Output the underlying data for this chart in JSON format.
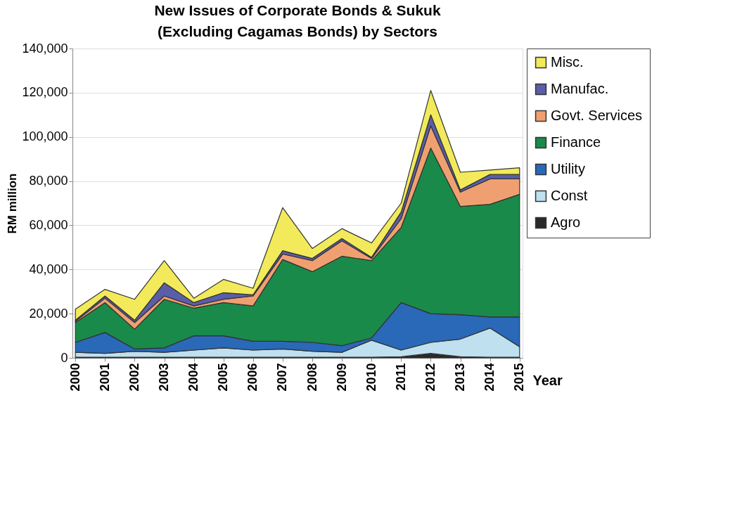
{
  "chart_data": {
    "type": "area",
    "title": "New Issues of Corporate Bonds & Sukuk (Excluding Cagamas Bonds) by Sectors",
    "xlabel": "Year",
    "ylabel": "RM million",
    "stacked": true,
    "legend": "right",
    "grid": "y",
    "categories": [
      "2000",
      "2001",
      "2002",
      "2003",
      "2004",
      "2005",
      "2006",
      "2007",
      "2008",
      "2009",
      "2010",
      "2011",
      "2012",
      "2013",
      "2014",
      "2015"
    ],
    "ylim": [
      0,
      140000
    ],
    "yticks": [
      {
        "value": 0,
        "label": "0"
      },
      {
        "value": 20000,
        "label": "20,000"
      },
      {
        "value": 40000,
        "label": "40,000"
      },
      {
        "value": 60000,
        "label": "60,000"
      },
      {
        "value": 80000,
        "label": "80,000"
      },
      {
        "value": 100000,
        "label": "100,000"
      },
      {
        "value": 120000,
        "label": "120,000"
      },
      {
        "value": 140000,
        "label": "140,000"
      }
    ],
    "series": [
      {
        "name": "Agro",
        "color": "#2a2a2a",
        "values": [
          300,
          300,
          300,
          300,
          300,
          300,
          300,
          300,
          300,
          300,
          300,
          500,
          2000,
          500,
          300,
          300
        ]
      },
      {
        "name": "Const",
        "color": "#bfe0ef",
        "values": [
          2200,
          1700,
          2700,
          2200,
          3200,
          4200,
          3200,
          3700,
          2700,
          2200,
          7700,
          3000,
          5000,
          8000,
          13200,
          4700
        ]
      },
      {
        "name": "Utility",
        "color": "#2a68b8",
        "values": [
          4500,
          9500,
          1000,
          2000,
          6500,
          5500,
          4000,
          3500,
          4000,
          3000,
          1000,
          21500,
          13000,
          11000,
          5000,
          13500
        ]
      },
      {
        "name": "Finance",
        "color": "#1a8a4a",
        "values": [
          9000,
          13500,
          9000,
          22000,
          12500,
          15000,
          16000,
          37000,
          32000,
          40500,
          35000,
          34000,
          75000,
          49000,
          51000,
          55500
        ]
      },
      {
        "name": "Govt. Services",
        "color": "#f0a070",
        "values": [
          500,
          2000,
          3000,
          1500,
          1000,
          1500,
          4500,
          2500,
          5000,
          7000,
          1000,
          4000,
          10000,
          6500,
          11500,
          7000
        ]
      },
      {
        "name": "Manufac.",
        "color": "#5a5ea8",
        "values": [
          500,
          1000,
          1000,
          6000,
          1500,
          3000,
          500,
          1500,
          1000,
          1000,
          500,
          3000,
          5000,
          1000,
          2000,
          2000
        ]
      },
      {
        "name": "Misc.",
        "color": "#f2ea5a",
        "values": [
          5000,
          3000,
          9500,
          10000,
          2000,
          6000,
          3000,
          19500,
          4500,
          4500,
          6500,
          4000,
          11000,
          8000,
          2000,
          3000
        ]
      }
    ]
  }
}
